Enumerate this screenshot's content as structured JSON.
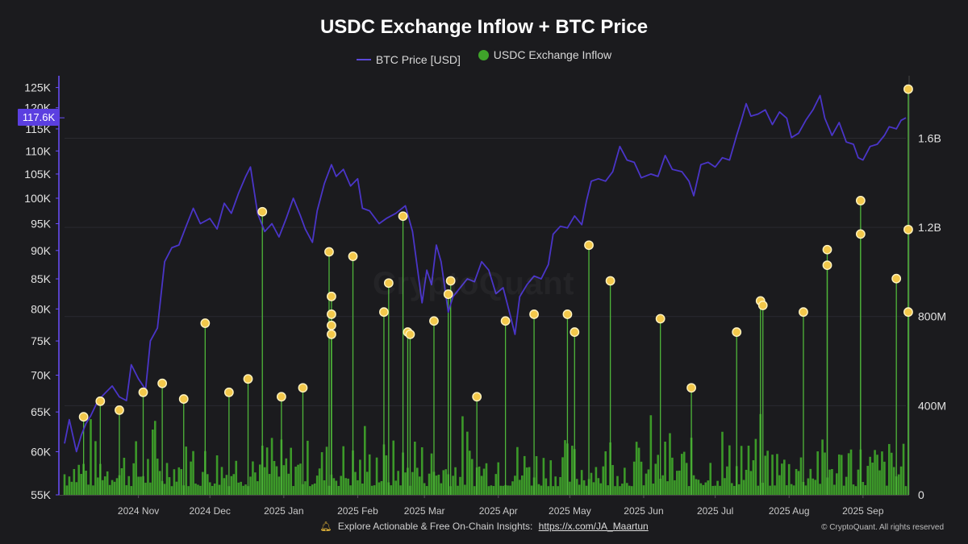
{
  "title": "USDC Exchange Inflow + BTC Price",
  "legend": {
    "price": "BTC Price [USD]",
    "inflow": "USDC Exchange Inflow"
  },
  "badge": "117.6K",
  "watermark": "CryptoQuant",
  "footer": {
    "text": "Explore Actionable & Free On-Chain Insights:",
    "link": "https://x.com/JA_Maartun",
    "copyright": "© CryptoQuant. All rights reserved"
  },
  "colors": {
    "price_line": "#4a35c8",
    "inflow_bar": "#3fa42a",
    "marker": "#f3c84b",
    "background": "#1b1b1e"
  },
  "chart_data": {
    "type": "line",
    "x_range": [
      "2024-10-01",
      "2025-09-19"
    ],
    "x_ticks": [
      {
        "date": "2024-11-01",
        "label": "2024 Nov"
      },
      {
        "date": "2024-12-01",
        "label": "2024 Dec"
      },
      {
        "date": "2025-01-01",
        "label": "2025 Jan"
      },
      {
        "date": "2025-02-01",
        "label": "2025 Feb"
      },
      {
        "date": "2025-03-01",
        "label": "2025 Mar"
      },
      {
        "date": "2025-04-01",
        "label": "2025 Apr"
      },
      {
        "date": "2025-05-01",
        "label": "2025 May"
      },
      {
        "date": "2025-06-01",
        "label": "2025 Jun"
      },
      {
        "date": "2025-07-01",
        "label": "2025 Jul"
      },
      {
        "date": "2025-08-01",
        "label": "2025 Aug"
      },
      {
        "date": "2025-09-01",
        "label": "2025 Sep"
      }
    ],
    "y_left": {
      "scale": "log",
      "range": [
        55000,
        128000
      ],
      "ticks": [
        {
          "value": 55000,
          "label": "55K"
        },
        {
          "value": 60000,
          "label": "60K"
        },
        {
          "value": 65000,
          "label": "65K"
        },
        {
          "value": 70000,
          "label": "70K"
        },
        {
          "value": 75000,
          "label": "75K"
        },
        {
          "value": 80000,
          "label": "80K"
        },
        {
          "value": 85000,
          "label": "85K"
        },
        {
          "value": 90000,
          "label": "90K"
        },
        {
          "value": 95000,
          "label": "95K"
        },
        {
          "value": 100000,
          "label": "100K"
        },
        {
          "value": 105000,
          "label": "105K"
        },
        {
          "value": 110000,
          "label": "110K"
        },
        {
          "value": 115000,
          "label": "115K"
        },
        {
          "value": 120000,
          "label": "120K"
        },
        {
          "value": 125000,
          "label": "125K"
        }
      ]
    },
    "y_right": {
      "scale": "linear",
      "range": [
        0,
        1880000000
      ],
      "ticks": [
        {
          "value": 0,
          "label": "0"
        },
        {
          "value": 400000000,
          "label": "400M"
        },
        {
          "value": 800000000,
          "label": "800M"
        },
        {
          "value": 1200000000,
          "label": "1.2B"
        },
        {
          "value": 1600000000,
          "label": "1.6B"
        }
      ]
    },
    "series": [
      {
        "name": "BTC Price [USD]",
        "axis": "left",
        "points": [
          [
            "2024-10-01",
            61000
          ],
          [
            "2024-10-03",
            64000
          ],
          [
            "2024-10-06",
            60000
          ],
          [
            "2024-10-08",
            62000
          ],
          [
            "2024-10-10",
            63500
          ],
          [
            "2024-10-12",
            64500
          ],
          [
            "2024-10-15",
            66500
          ],
          [
            "2024-10-18",
            67500
          ],
          [
            "2024-10-21",
            68500
          ],
          [
            "2024-10-24",
            67000
          ],
          [
            "2024-10-27",
            66500
          ],
          [
            "2024-10-29",
            71500
          ],
          [
            "2024-11-01",
            69500
          ],
          [
            "2024-11-04",
            68000
          ],
          [
            "2024-11-06",
            75000
          ],
          [
            "2024-11-09",
            77000
          ],
          [
            "2024-11-12",
            88000
          ],
          [
            "2024-11-15",
            90500
          ],
          [
            "2024-11-18",
            91000
          ],
          [
            "2024-11-21",
            94500
          ],
          [
            "2024-11-24",
            98000
          ],
          [
            "2024-11-27",
            95000
          ],
          [
            "2024-12-01",
            96000
          ],
          [
            "2024-12-04",
            94000
          ],
          [
            "2024-12-07",
            99000
          ],
          [
            "2024-12-10",
            97000
          ],
          [
            "2024-12-13",
            101000
          ],
          [
            "2024-12-16",
            104500
          ],
          [
            "2024-12-18",
            106500
          ],
          [
            "2024-12-21",
            97000
          ],
          [
            "2024-12-24",
            93500
          ],
          [
            "2024-12-27",
            95000
          ],
          [
            "2024-12-30",
            92500
          ],
          [
            "2025-01-02",
            96000
          ],
          [
            "2025-01-05",
            100000
          ],
          [
            "2025-01-08",
            96500
          ],
          [
            "2025-01-10",
            94000
          ],
          [
            "2025-01-13",
            91500
          ],
          [
            "2025-01-15",
            97500
          ],
          [
            "2025-01-18",
            103000
          ],
          [
            "2025-01-21",
            107000
          ],
          [
            "2025-01-23",
            104500
          ],
          [
            "2025-01-26",
            106000
          ],
          [
            "2025-01-29",
            102500
          ],
          [
            "2025-02-01",
            104000
          ],
          [
            "2025-02-03",
            98000
          ],
          [
            "2025-02-06",
            97500
          ],
          [
            "2025-02-10",
            95000
          ],
          [
            "2025-02-13",
            96000
          ],
          [
            "2025-02-17",
            97000
          ],
          [
            "2025-02-21",
            98500
          ],
          [
            "2025-02-24",
            93500
          ],
          [
            "2025-02-26",
            87000
          ],
          [
            "2025-02-28",
            81000
          ],
          [
            "2025-03-02",
            86500
          ],
          [
            "2025-03-04",
            84000
          ],
          [
            "2025-03-06",
            91000
          ],
          [
            "2025-03-08",
            88000
          ],
          [
            "2025-03-11",
            79500
          ],
          [
            "2025-03-13",
            82000
          ],
          [
            "2025-03-16",
            83500
          ],
          [
            "2025-03-19",
            85000
          ],
          [
            "2025-03-22",
            84500
          ],
          [
            "2025-03-25",
            88000
          ],
          [
            "2025-03-28",
            86500
          ],
          [
            "2025-03-31",
            82500
          ],
          [
            "2025-04-03",
            83500
          ],
          [
            "2025-04-06",
            79000
          ],
          [
            "2025-04-08",
            76000
          ],
          [
            "2025-04-10",
            82000
          ],
          [
            "2025-04-13",
            84000
          ],
          [
            "2025-04-16",
            85500
          ],
          [
            "2025-04-19",
            85000
          ],
          [
            "2025-04-22",
            87500
          ],
          [
            "2025-04-24",
            93000
          ],
          [
            "2025-04-27",
            94500
          ],
          [
            "2025-04-30",
            94200
          ],
          [
            "2025-05-03",
            96500
          ],
          [
            "2025-05-06",
            94800
          ],
          [
            "2025-05-08",
            99500
          ],
          [
            "2025-05-10",
            103500
          ],
          [
            "2025-05-13",
            104000
          ],
          [
            "2025-05-16",
            103500
          ],
          [
            "2025-05-19",
            105500
          ],
          [
            "2025-05-22",
            111000
          ],
          [
            "2025-05-25",
            108000
          ],
          [
            "2025-05-28",
            107500
          ],
          [
            "2025-05-31",
            104200
          ],
          [
            "2025-06-04",
            105000
          ],
          [
            "2025-06-07",
            104500
          ],
          [
            "2025-06-10",
            109000
          ],
          [
            "2025-06-13",
            106000
          ],
          [
            "2025-06-17",
            105500
          ],
          [
            "2025-06-20",
            103500
          ],
          [
            "2025-06-22",
            100500
          ],
          [
            "2025-06-25",
            107000
          ],
          [
            "2025-06-28",
            107500
          ],
          [
            "2025-07-01",
            106500
          ],
          [
            "2025-07-04",
            108500
          ],
          [
            "2025-07-07",
            108000
          ],
          [
            "2025-07-10",
            113500
          ],
          [
            "2025-07-12",
            117000
          ],
          [
            "2025-07-14",
            121000
          ],
          [
            "2025-07-16",
            118000
          ],
          [
            "2025-07-19",
            118500
          ],
          [
            "2025-07-22",
            119500
          ],
          [
            "2025-07-25",
            116000
          ],
          [
            "2025-07-28",
            119000
          ],
          [
            "2025-07-31",
            117500
          ],
          [
            "2025-08-02",
            113000
          ],
          [
            "2025-08-05",
            114000
          ],
          [
            "2025-08-08",
            117000
          ],
          [
            "2025-08-11",
            119500
          ],
          [
            "2025-08-14",
            123000
          ],
          [
            "2025-08-16",
            117500
          ],
          [
            "2025-08-19",
            113500
          ],
          [
            "2025-08-22",
            116500
          ],
          [
            "2025-08-25",
            112000
          ],
          [
            "2025-08-28",
            111500
          ],
          [
            "2025-08-30",
            108500
          ],
          [
            "2025-09-01",
            108000
          ],
          [
            "2025-09-04",
            111000
          ],
          [
            "2025-09-07",
            111500
          ],
          [
            "2025-09-10",
            113500
          ],
          [
            "2025-09-12",
            115500
          ],
          [
            "2025-09-15",
            115000
          ],
          [
            "2025-09-17",
            117000
          ],
          [
            "2025-09-19",
            117600
          ]
        ]
      },
      {
        "name": "USDC Exchange Inflow",
        "axis": "right",
        "style": "bars",
        "baseline_noise_max": 260000000,
        "spikes": [
          [
            "2024-10-09",
            350000000
          ],
          [
            "2024-10-16",
            420000000
          ],
          [
            "2024-10-24",
            380000000
          ],
          [
            "2024-11-03",
            460000000
          ],
          [
            "2024-11-11",
            500000000
          ],
          [
            "2024-11-20",
            430000000
          ],
          [
            "2024-11-29",
            770000000
          ],
          [
            "2024-12-09",
            460000000
          ],
          [
            "2024-12-17",
            520000000
          ],
          [
            "2024-12-23",
            1270000000
          ],
          [
            "2024-12-31",
            440000000
          ],
          [
            "2025-01-09",
            480000000
          ],
          [
            "2025-01-20",
            1090000000
          ],
          [
            "2025-01-21",
            890000000
          ],
          [
            "2025-01-21",
            810000000
          ],
          [
            "2025-01-21",
            760000000
          ],
          [
            "2025-01-21",
            720000000
          ],
          [
            "2025-01-30",
            1070000000
          ],
          [
            "2025-02-12",
            820000000
          ],
          [
            "2025-02-14",
            950000000
          ],
          [
            "2025-02-20",
            1250000000
          ],
          [
            "2025-02-22",
            730000000
          ],
          [
            "2025-02-23",
            720000000
          ],
          [
            "2025-03-05",
            780000000
          ],
          [
            "2025-03-11",
            900000000
          ],
          [
            "2025-03-12",
            960000000
          ],
          [
            "2025-03-23",
            440000000
          ],
          [
            "2025-04-04",
            780000000
          ],
          [
            "2025-04-16",
            810000000
          ],
          [
            "2025-04-30",
            810000000
          ],
          [
            "2025-05-03",
            730000000
          ],
          [
            "2025-05-09",
            1120000000
          ],
          [
            "2025-05-18",
            960000000
          ],
          [
            "2025-06-08",
            790000000
          ],
          [
            "2025-06-21",
            480000000
          ],
          [
            "2025-07-10",
            730000000
          ],
          [
            "2025-07-20",
            870000000
          ],
          [
            "2025-07-21",
            850000000
          ],
          [
            "2025-08-07",
            820000000
          ],
          [
            "2025-08-17",
            1100000000
          ],
          [
            "2025-08-17",
            1030000000
          ],
          [
            "2025-08-31",
            1320000000
          ],
          [
            "2025-08-31",
            1170000000
          ],
          [
            "2025-09-15",
            970000000
          ],
          [
            "2025-09-20",
            1820000000
          ],
          [
            "2025-09-20",
            1190000000
          ],
          [
            "2025-09-20",
            820000000
          ]
        ]
      }
    ]
  }
}
